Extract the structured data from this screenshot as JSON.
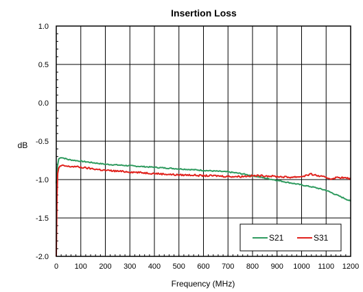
{
  "chart_data": {
    "type": "line",
    "title": "Insertion Loss",
    "xlabel": "Frequency (MHz)",
    "ylabel": "dB",
    "xlim": [
      0,
      1200
    ],
    "ylim": [
      -2.0,
      1.0
    ],
    "x_ticks": [
      0,
      100,
      200,
      300,
      400,
      500,
      600,
      700,
      800,
      900,
      1000,
      1100,
      1200
    ],
    "y_ticks": [
      "-2.0",
      "-1.5",
      "-1.0",
      "-0.5",
      "0.0",
      "0.5",
      "1.0"
    ],
    "grid": true,
    "legend_position": "bottom-right",
    "series": [
      {
        "name": "S21",
        "color": "#2e9a5e",
        "x": [
          0,
          5,
          10,
          20,
          30,
          50,
          75,
          100,
          150,
          200,
          250,
          300,
          350,
          400,
          450,
          500,
          550,
          600,
          650,
          700,
          750,
          800,
          850,
          900,
          950,
          1000,
          1050,
          1100,
          1150,
          1200
        ],
        "y": [
          -1.05,
          -0.82,
          -0.73,
          -0.71,
          -0.72,
          -0.74,
          -0.75,
          -0.76,
          -0.78,
          -0.8,
          -0.81,
          -0.82,
          -0.83,
          -0.84,
          -0.85,
          -0.86,
          -0.87,
          -0.88,
          -0.89,
          -0.9,
          -0.92,
          -0.95,
          -0.98,
          -1.01,
          -1.04,
          -1.07,
          -1.1,
          -1.14,
          -1.21,
          -1.28
        ]
      },
      {
        "name": "S31",
        "color": "#e0201b",
        "x": [
          0,
          3,
          6,
          10,
          15,
          20,
          30,
          50,
          75,
          100,
          150,
          200,
          250,
          300,
          350,
          400,
          450,
          500,
          550,
          600,
          650,
          700,
          750,
          800,
          850,
          900,
          950,
          1000,
          1040,
          1080,
          1120,
          1150,
          1180,
          1200
        ],
        "y": [
          -2.0,
          -1.2,
          -0.92,
          -0.85,
          -0.83,
          -0.82,
          -0.82,
          -0.83,
          -0.83,
          -0.84,
          -0.86,
          -0.88,
          -0.89,
          -0.9,
          -0.91,
          -0.92,
          -0.93,
          -0.94,
          -0.94,
          -0.95,
          -0.95,
          -0.96,
          -0.96,
          -0.95,
          -0.95,
          -0.96,
          -0.97,
          -0.96,
          -0.93,
          -0.96,
          -0.99,
          -0.97,
          -0.98,
          -0.99
        ]
      }
    ]
  }
}
